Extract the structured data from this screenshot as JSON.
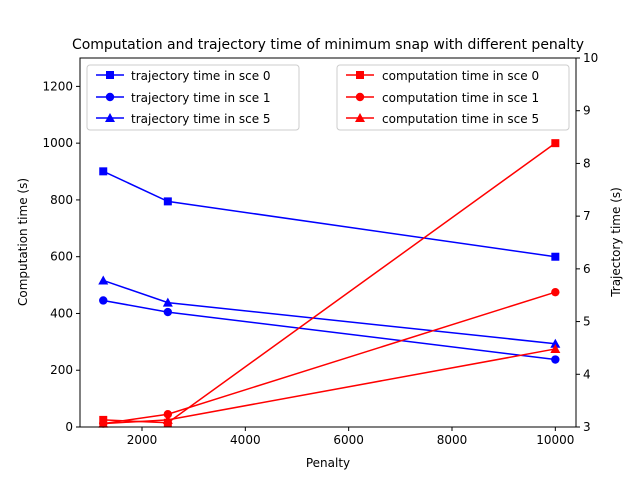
{
  "chart_data": {
    "type": "line",
    "title": "Computation and trajectory time of minimum snap with different penalty",
    "xlabel": "Penalty",
    "ylabel_left": "Computation time (s)",
    "ylabel_right": "Trajectory time (s)",
    "xlim": [
      800,
      10400
    ],
    "ylim_left": [
      0,
      1300
    ],
    "ylim_right": [
      3,
      10
    ],
    "xticks": [
      2000,
      4000,
      6000,
      8000,
      10000
    ],
    "yticks_left": [
      0,
      200,
      400,
      600,
      800,
      1000,
      1200
    ],
    "yticks_right": [
      3,
      4,
      5,
      6,
      7,
      8,
      9,
      10
    ],
    "grid": false,
    "x": [
      1250,
      2500,
      10000
    ],
    "trajectory_series": [
      {
        "name": "trajectory time in sce 0",
        "marker": "square",
        "color": "#0000ff",
        "values": [
          7.85,
          7.28,
          6.23
        ]
      },
      {
        "name": "trajectory time in sce 1",
        "marker": "circle",
        "color": "#0000ff",
        "values": [
          5.4,
          5.18,
          4.28
        ]
      },
      {
        "name": "trajectory time in sce 5",
        "marker": "triangle",
        "color": "#0000ff",
        "values": [
          5.78,
          5.36,
          4.58
        ]
      }
    ],
    "computation_series": [
      {
        "name": "computation time in sce 0",
        "marker": "square",
        "color": "#ff0000",
        "values": [
          25,
          15,
          1000
        ]
      },
      {
        "name": "computation time in sce 1",
        "marker": "circle",
        "color": "#ff0000",
        "values": [
          12,
          45,
          475
        ]
      },
      {
        "name": "computation time in sce 5",
        "marker": "triangle",
        "color": "#ff0000",
        "values": [
          12,
          25,
          275
        ]
      }
    ],
    "legend_left_placement": "top-left",
    "legend_right_placement": "top-right"
  }
}
